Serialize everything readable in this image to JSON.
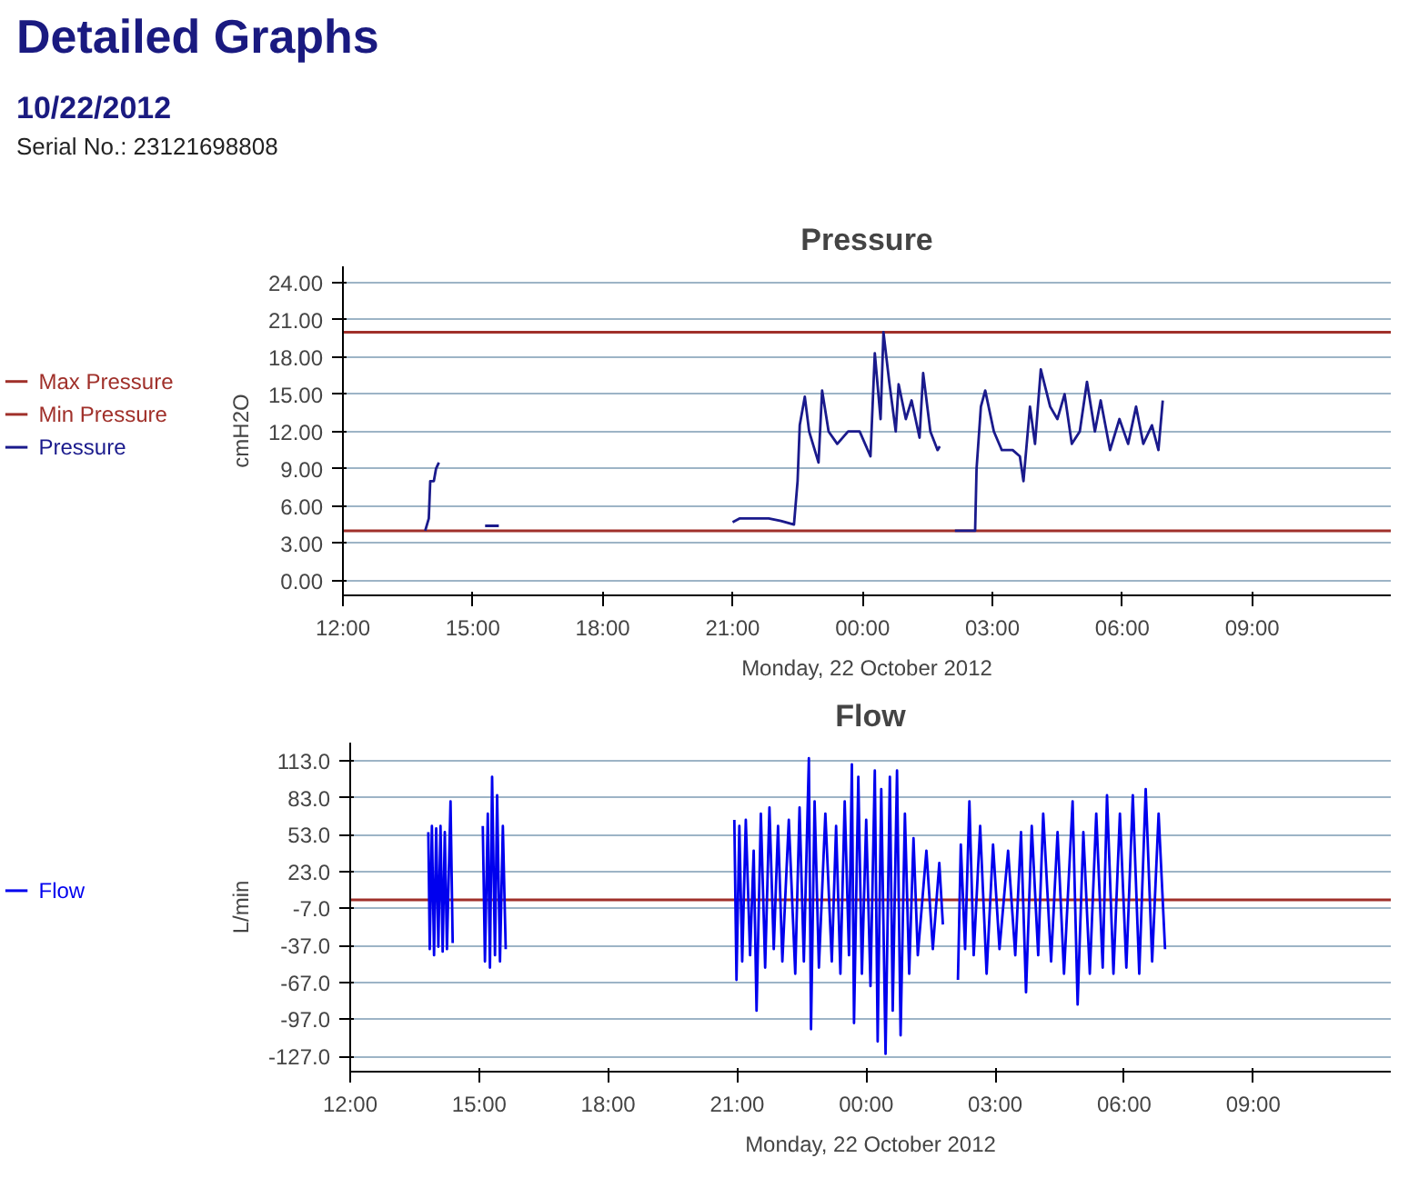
{
  "chart_data": [
    {
      "type": "other",
      "title": "Detailed Graphs",
      "subtitle": "10/22/2012",
      "annotations": [
        "Serial No.: 23121698808"
      ]
    },
    {
      "type": "line",
      "title": "Pressure",
      "xlabel": "Monday, 22 October 2012",
      "ylabel": "cmH2O",
      "xlim": [
        "2012-10-22T12:00",
        "2012-10-23T12:12"
      ],
      "ylim": [
        -1.2,
        25.3
      ],
      "xticks": [
        {
          "value": "2012-10-22T12:00",
          "label": "12:00"
        },
        {
          "value": "2012-10-22T15:00",
          "label": "15:00"
        },
        {
          "value": "2012-10-22T18:00",
          "label": "18:00"
        },
        {
          "value": "2012-10-22T21:00",
          "label": "21:00"
        },
        {
          "value": "2012-10-23T00:00",
          "label": "00:00"
        },
        {
          "value": "2012-10-23T03:00",
          "label": "03:00"
        },
        {
          "value": "2012-10-23T06:00",
          "label": "06:00"
        },
        {
          "value": "2012-10-23T09:00",
          "label": "09:00"
        }
      ],
      "yticks": [
        {
          "value": 0,
          "label": "0.00"
        },
        {
          "value": 3,
          "label": "3.00"
        },
        {
          "value": 6,
          "label": "6.00"
        },
        {
          "value": 9,
          "label": "9.00"
        },
        {
          "value": 12,
          "label": "12.00"
        },
        {
          "value": 15,
          "label": "15.00"
        },
        {
          "value": 18,
          "label": "18.00"
        },
        {
          "value": 21,
          "label": "21.00"
        },
        {
          "value": 24,
          "label": "24.00"
        }
      ],
      "grid": "y",
      "legend": "left",
      "ref_lines": [
        {
          "axis": "y",
          "value": 20,
          "label": "Max Pressure",
          "color": "#a0302a"
        },
        {
          "axis": "y",
          "value": 4,
          "label": "Min Pressure",
          "color": "#a0302a"
        }
      ],
      "series": [
        {
          "name": "Pressure",
          "color": "#1a1a8c",
          "x": [
            "2012-10-22T13:54",
            "2012-10-22T13:59",
            "2012-10-22T14:01",
            "2012-10-22T14:06",
            "2012-10-22T14:09",
            "2012-10-22T14:13",
            "2012-10-22T14:14",
            "2012-10-22T15:17",
            "2012-10-22T15:36",
            "2012-10-22T15:37",
            "2012-10-22T21:00",
            "2012-10-22T21:10",
            "2012-10-22T21:23",
            "2012-10-22T21:50",
            "2012-10-22T22:07",
            "2012-10-22T22:25",
            "2012-10-22T22:30",
            "2012-10-22T22:33",
            "2012-10-22T22:40",
            "2012-10-22T22:46",
            "2012-10-22T22:59",
            "2012-10-22T23:04",
            "2012-10-22T23:13",
            "2012-10-22T23:25",
            "2012-10-22T23:40",
            "2012-10-22T23:56",
            "2012-10-23T00:11",
            "2012-10-23T00:17",
            "2012-10-23T00:25",
            "2012-10-23T00:29",
            "2012-10-23T00:37",
            "2012-10-23T00:46",
            "2012-10-23T00:50",
            "2012-10-23T01:00",
            "2012-10-23T01:08",
            "2012-10-23T01:19",
            "2012-10-23T01:24",
            "2012-10-23T01:34",
            "2012-10-23T01:44",
            "2012-10-23T01:47",
            "2012-10-23T01:48",
            "2012-10-23T02:08",
            "2012-10-23T02:36",
            "2012-10-23T02:38",
            "2012-10-23T02:44",
            "2012-10-23T02:50",
            "2012-10-23T03:02",
            "2012-10-23T03:13",
            "2012-10-23T03:28",
            "2012-10-23T03:38",
            "2012-10-23T03:43",
            "2012-10-23T03:52",
            "2012-10-23T03:59",
            "2012-10-23T04:07",
            "2012-10-23T04:20",
            "2012-10-23T04:30",
            "2012-10-23T04:40",
            "2012-10-23T04:50",
            "2012-10-23T05:01",
            "2012-10-23T05:11",
            "2012-10-23T05:22",
            "2012-10-23T05:30",
            "2012-10-23T05:43",
            "2012-10-23T05:56",
            "2012-10-23T06:08",
            "2012-10-23T06:19",
            "2012-10-23T06:29",
            "2012-10-23T06:41",
            "2012-10-23T06:50",
            "2012-10-23T06:56"
          ],
          "values": [
            4.0,
            5.0,
            8.0,
            8.0,
            9.0,
            9.5,
            null,
            4.4,
            4.4,
            null,
            4.7,
            5.0,
            5.0,
            5.0,
            4.8,
            4.5,
            8.0,
            12.5,
            14.8,
            12.0,
            9.5,
            15.3,
            12.0,
            11.0,
            12.0,
            12.0,
            10.0,
            18.3,
            13.0,
            20.0,
            16.0,
            12.0,
            15.8,
            13.0,
            14.5,
            11.5,
            16.7,
            12.0,
            10.5,
            10.8,
            null,
            4.0,
            4.0,
            9.0,
            14.0,
            15.3,
            12.0,
            10.5,
            10.5,
            10.0,
            8.0,
            14.0,
            11.0,
            17.0,
            14.0,
            13.0,
            15.0,
            11.0,
            12.0,
            16.0,
            12.0,
            14.5,
            10.5,
            13.0,
            11.0,
            14.0,
            11.0,
            12.5,
            10.5,
            14.5
          ]
        }
      ]
    },
    {
      "type": "line",
      "title": "Flow",
      "xlabel": "Monday, 22 October 2012",
      "ylabel": "L/min",
      "xlim": [
        "2012-10-22T12:00",
        "2012-10-23T12:12"
      ],
      "ylim": [
        -139.5,
        127.7
      ],
      "xticks": [
        {
          "value": "2012-10-22T12:00",
          "label": "12:00"
        },
        {
          "value": "2012-10-22T15:00",
          "label": "15:00"
        },
        {
          "value": "2012-10-22T18:00",
          "label": "18:00"
        },
        {
          "value": "2012-10-22T21:00",
          "label": "21:00"
        },
        {
          "value": "2012-10-23T00:00",
          "label": "00:00"
        },
        {
          "value": "2012-10-23T03:00",
          "label": "03:00"
        },
        {
          "value": "2012-10-23T06:00",
          "label": "06:00"
        },
        {
          "value": "2012-10-23T09:00",
          "label": "09:00"
        }
      ],
      "yticks": [
        {
          "value": -127,
          "label": "-127.0"
        },
        {
          "value": -97,
          "label": "-97.0"
        },
        {
          "value": -67,
          "label": "-67.0"
        },
        {
          "value": -37,
          "label": "-37.0"
        },
        {
          "value": -7,
          "label": "-7.0"
        },
        {
          "value": 23,
          "label": "23.0"
        },
        {
          "value": 53,
          "label": "53.0"
        },
        {
          "value": 83,
          "label": "83.0"
        },
        {
          "value": 113,
          "label": "113.0"
        }
      ],
      "grid": "y",
      "legend": "left",
      "ref_lines": [
        {
          "axis": "y",
          "value": 0,
          "color": "#a0302a"
        }
      ],
      "series": [
        {
          "name": "Flow",
          "color": "#0000ee",
          "x": [
            "2012-10-22T13:49",
            "2012-10-22T13:51",
            "2012-10-22T13:54",
            "2012-10-22T13:57",
            "2012-10-22T14:00",
            "2012-10-22T14:03",
            "2012-10-22T14:06",
            "2012-10-22T14:09",
            "2012-10-22T14:12",
            "2012-10-22T14:15",
            "2012-10-22T14:20",
            "2012-10-22T14:23",
            "2012-10-22T14:24",
            "2012-10-22T15:05",
            "2012-10-22T15:08",
            "2012-10-22T15:12",
            "2012-10-22T15:15",
            "2012-10-22T15:18",
            "2012-10-22T15:22",
            "2012-10-22T15:25",
            "2012-10-22T15:29",
            "2012-10-22T15:33",
            "2012-10-22T15:37",
            "2012-10-22T15:38",
            "2012-10-22T20:56",
            "2012-10-22T20:59",
            "2012-10-22T21:03",
            "2012-10-22T21:07",
            "2012-10-22T21:12",
            "2012-10-22T21:18",
            "2012-10-22T21:23",
            "2012-10-22T21:27",
            "2012-10-22T21:33",
            "2012-10-22T21:39",
            "2012-10-22T21:45",
            "2012-10-22T21:51",
            "2012-10-22T21:57",
            "2012-10-22T22:03",
            "2012-10-22T22:12",
            "2012-10-22T22:21",
            "2012-10-22T22:27",
            "2012-10-22T22:33",
            "2012-10-22T22:40",
            "2012-10-22T22:43",
            "2012-10-22T22:48",
            "2012-10-22T22:54",
            "2012-10-22T23:03",
            "2012-10-22T23:12",
            "2012-10-22T23:18",
            "2012-10-22T23:24",
            "2012-10-22T23:30",
            "2012-10-22T23:36",
            "2012-10-22T23:40",
            "2012-10-22T23:43",
            "2012-10-22T23:49",
            "2012-10-22T23:54",
            "2012-10-23T00:00",
            "2012-10-23T00:06",
            "2012-10-23T00:12",
            "2012-10-23T00:16",
            "2012-10-23T00:21",
            "2012-10-23T00:27",
            "2012-10-23T00:33",
            "2012-10-23T00:37",
            "2012-10-23T00:43",
            "2012-10-23T00:48",
            "2012-10-23T00:54",
            "2012-10-23T01:00",
            "2012-10-23T01:06",
            "2012-10-23T01:12",
            "2012-10-23T01:24",
            "2012-10-23T01:33",
            "2012-10-23T01:42",
            "2012-10-23T01:47",
            "2012-10-23T01:48",
            "2012-10-23T02:08",
            "2012-10-23T02:12",
            "2012-10-23T02:18",
            "2012-10-23T02:24",
            "2012-10-23T02:30",
            "2012-10-23T02:39",
            "2012-10-23T02:48",
            "2012-10-23T02:57",
            "2012-10-23T03:06",
            "2012-10-23T03:18",
            "2012-10-23T03:28",
            "2012-10-23T03:36",
            "2012-10-23T03:43",
            "2012-10-23T03:51",
            "2012-10-23T04:00",
            "2012-10-23T04:07",
            "2012-10-23T04:18",
            "2012-10-23T04:27",
            "2012-10-23T04:36",
            "2012-10-23T04:48",
            "2012-10-23T04:55",
            "2012-10-23T05:03",
            "2012-10-23T05:12",
            "2012-10-23T05:21",
            "2012-10-23T05:30",
            "2012-10-23T05:36",
            "2012-10-23T05:45",
            "2012-10-23T05:54",
            "2012-10-23T06:03",
            "2012-10-23T06:12",
            "2012-10-23T06:21",
            "2012-10-23T06:30",
            "2012-10-23T06:39",
            "2012-10-23T06:48",
            "2012-10-23T06:57"
          ],
          "values": [
            55,
            -40,
            60,
            -45,
            58,
            -38,
            60,
            -42,
            55,
            -40,
            80,
            -35,
            null,
            60,
            -50,
            70,
            -55,
            100,
            -45,
            85,
            -50,
            60,
            -40,
            null,
            65,
            -65,
            60,
            -50,
            65,
            -45,
            40,
            -90,
            70,
            -55,
            75,
            -40,
            60,
            -50,
            65,
            -60,
            75,
            -50,
            115,
            -105,
            80,
            -55,
            70,
            -50,
            60,
            -60,
            80,
            -45,
            110,
            -100,
            100,
            -60,
            65,
            -70,
            105,
            -115,
            90,
            -125,
            100,
            -90,
            105,
            -110,
            70,
            -60,
            50,
            -45,
            40,
            -40,
            30,
            -20,
            null,
            -65,
            45,
            -40,
            80,
            -45,
            60,
            -60,
            45,
            -40,
            40,
            -45,
            55,
            -75,
            60,
            -45,
            70,
            -50,
            55,
            -60,
            80,
            -85,
            55,
            -60,
            70,
            -55,
            85,
            -60,
            70,
            -55,
            85,
            -60,
            90,
            -50,
            70,
            -40
          ]
        }
      ]
    }
  ]
}
